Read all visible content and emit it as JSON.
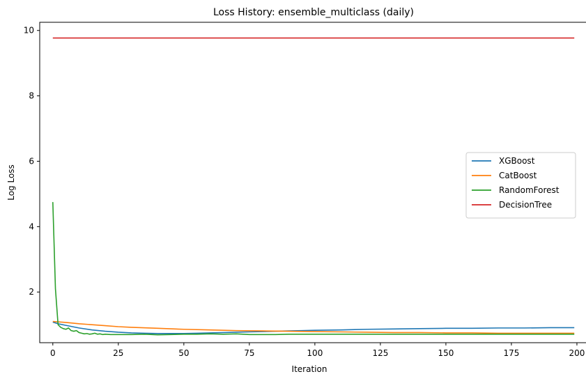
{
  "chart_data": {
    "type": "line",
    "title": "Loss History: ensemble_multiclass (daily)",
    "xlabel": "Iteration",
    "ylabel": "Log Loss",
    "xlim": [
      -5,
      204
    ],
    "ylim": [
      0.45,
      10.25
    ],
    "xticks": [
      0,
      25,
      50,
      75,
      100,
      125,
      150,
      175,
      200
    ],
    "yticks": [
      2,
      4,
      6,
      8,
      10
    ],
    "grid": false,
    "legend_position": "center-right",
    "series": [
      {
        "name": "XGBoost",
        "color": "#1f77b4",
        "points": [
          [
            0,
            1.08
          ],
          [
            2,
            1.03
          ],
          [
            5,
            0.98
          ],
          [
            10,
            0.9
          ],
          [
            15,
            0.84
          ],
          [
            20,
            0.8
          ],
          [
            25,
            0.77
          ],
          [
            30,
            0.75
          ],
          [
            35,
            0.74
          ],
          [
            40,
            0.73
          ],
          [
            45,
            0.73
          ],
          [
            50,
            0.73
          ],
          [
            55,
            0.74
          ],
          [
            60,
            0.75
          ],
          [
            65,
            0.76
          ],
          [
            70,
            0.77
          ],
          [
            75,
            0.78
          ],
          [
            80,
            0.79
          ],
          [
            85,
            0.8
          ],
          [
            90,
            0.81
          ],
          [
            95,
            0.82
          ],
          [
            100,
            0.83
          ],
          [
            110,
            0.84
          ],
          [
            120,
            0.86
          ],
          [
            130,
            0.87
          ],
          [
            140,
            0.88
          ],
          [
            150,
            0.89
          ],
          [
            160,
            0.89
          ],
          [
            170,
            0.9
          ],
          [
            180,
            0.9
          ],
          [
            190,
            0.91
          ],
          [
            199,
            0.91
          ]
        ]
      },
      {
        "name": "CatBoost",
        "color": "#ff7f0e",
        "points": [
          [
            0,
            1.1
          ],
          [
            5,
            1.07
          ],
          [
            10,
            1.03
          ],
          [
            15,
            1.0
          ],
          [
            20,
            0.97
          ],
          [
            25,
            0.94
          ],
          [
            30,
            0.92
          ],
          [
            40,
            0.89
          ],
          [
            50,
            0.86
          ],
          [
            60,
            0.84
          ],
          [
            70,
            0.82
          ],
          [
            80,
            0.81
          ],
          [
            90,
            0.8
          ],
          [
            100,
            0.79
          ],
          [
            110,
            0.78
          ],
          [
            120,
            0.77
          ],
          [
            130,
            0.76
          ],
          [
            140,
            0.76
          ],
          [
            150,
            0.75
          ],
          [
            160,
            0.75
          ],
          [
            170,
            0.74
          ],
          [
            180,
            0.74
          ],
          [
            190,
            0.74
          ],
          [
            199,
            0.74
          ]
        ]
      },
      {
        "name": "RandomForest",
        "color": "#2ca02c",
        "points": [
          [
            0,
            4.75
          ],
          [
            1,
            2.1
          ],
          [
            2,
            1.0
          ],
          [
            3,
            0.92
          ],
          [
            4,
            0.88
          ],
          [
            5,
            0.86
          ],
          [
            6,
            0.9
          ],
          [
            7,
            0.82
          ],
          [
            8,
            0.8
          ],
          [
            9,
            0.82
          ],
          [
            10,
            0.76
          ],
          [
            11,
            0.74
          ],
          [
            12,
            0.72
          ],
          [
            13,
            0.73
          ],
          [
            14,
            0.71
          ],
          [
            15,
            0.72
          ],
          [
            16,
            0.74
          ],
          [
            17,
            0.71
          ],
          [
            18,
            0.72
          ],
          [
            19,
            0.7
          ],
          [
            20,
            0.71
          ],
          [
            22,
            0.7
          ],
          [
            25,
            0.7
          ],
          [
            30,
            0.7
          ],
          [
            35,
            0.71
          ],
          [
            40,
            0.69
          ],
          [
            45,
            0.7
          ],
          [
            50,
            0.71
          ],
          [
            55,
            0.71
          ],
          [
            60,
            0.72
          ],
          [
            65,
            0.71
          ],
          [
            70,
            0.72
          ],
          [
            75,
            0.7
          ],
          [
            80,
            0.7
          ],
          [
            85,
            0.7
          ],
          [
            90,
            0.71
          ],
          [
            95,
            0.71
          ],
          [
            100,
            0.71
          ],
          [
            110,
            0.71
          ],
          [
            120,
            0.71
          ],
          [
            130,
            0.71
          ],
          [
            140,
            0.71
          ],
          [
            150,
            0.71
          ],
          [
            160,
            0.71
          ],
          [
            170,
            0.71
          ],
          [
            180,
            0.71
          ],
          [
            190,
            0.71
          ],
          [
            199,
            0.71
          ]
        ]
      },
      {
        "name": "DecisionTree",
        "color": "#d62728",
        "points": [
          [
            0,
            9.77
          ],
          [
            199,
            9.77
          ]
        ]
      }
    ]
  }
}
